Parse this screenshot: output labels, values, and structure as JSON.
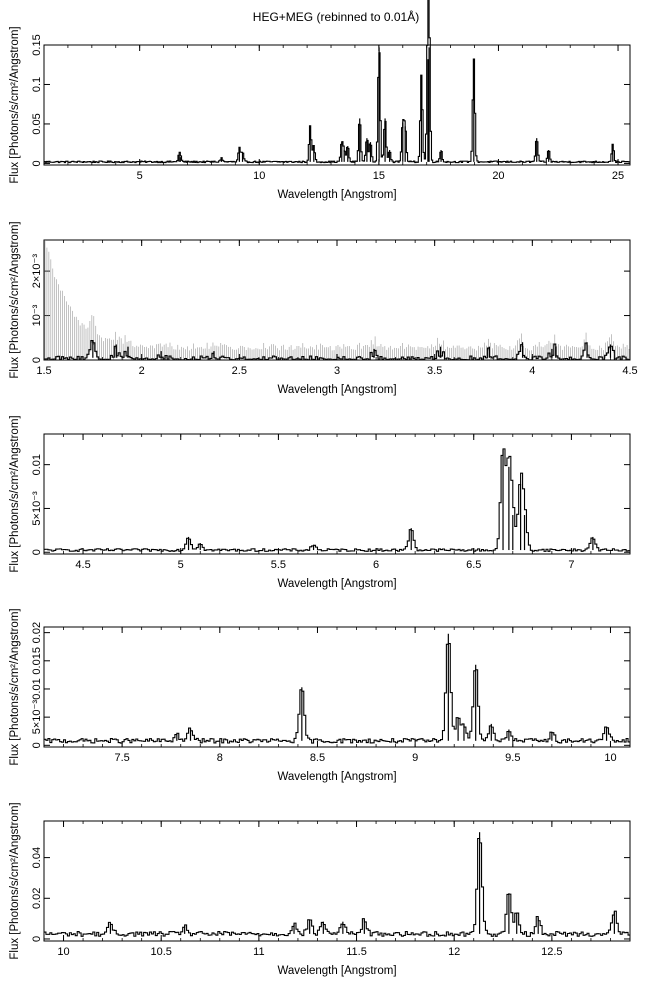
{
  "figure": {
    "title": "HEG+MEG (rebinned to 0.01Å)"
  },
  "colors": {
    "ink": "#000000",
    "errorbar": "#999999",
    "background": "#ffffff"
  },
  "chart_data": [
    {
      "type": "line",
      "step": true,
      "xlabel": "Wavelength [Angstrom]",
      "ylabel": "Flux [Photons/s/cm²/Angstrom]",
      "xlim": [
        1.0,
        25.5
      ],
      "ylim": [
        -0.002,
        0.15
      ],
      "xticks": [
        {
          "v": 5,
          "label": "5"
        },
        {
          "v": 10,
          "label": "10"
        },
        {
          "v": 15,
          "label": "15"
        },
        {
          "v": 20,
          "label": "20"
        },
        {
          "v": 25,
          "label": "25"
        }
      ],
      "yticks": [
        {
          "v": 0,
          "label": "0"
        },
        {
          "v": 0.05,
          "label": "0.05"
        },
        {
          "v": 0.1,
          "label": "0.1"
        },
        {
          "v": 0.15,
          "label": "0.15"
        }
      ],
      "continuum": 0.002,
      "noise": 0.001,
      "bin": 0.05,
      "lines": [
        [
          6.65,
          0.008
        ],
        [
          6.7,
          0.006
        ],
        [
          8.42,
          0.005
        ],
        [
          9.17,
          0.018
        ],
        [
          9.3,
          0.012
        ],
        [
          12.13,
          0.045
        ],
        [
          12.28,
          0.02
        ],
        [
          13.45,
          0.025
        ],
        [
          13.55,
          0.015
        ],
        [
          13.7,
          0.02
        ],
        [
          14.2,
          0.055
        ],
        [
          14.5,
          0.03
        ],
        [
          14.65,
          0.025
        ],
        [
          15.01,
          0.145
        ],
        [
          15.26,
          0.055
        ],
        [
          15.45,
          0.015
        ],
        [
          16.0,
          0.05
        ],
        [
          16.1,
          0.045
        ],
        [
          16.78,
          0.11
        ],
        [
          17.05,
          0.13
        ],
        [
          17.1,
          0.145
        ],
        [
          17.6,
          0.015
        ],
        [
          18.97,
          0.13
        ],
        [
          21.6,
          0.03
        ],
        [
          22.1,
          0.015
        ],
        [
          24.78,
          0.022
        ]
      ]
    },
    {
      "type": "line",
      "step": true,
      "xlabel": "Wavelength [Angstrom]",
      "ylabel": "Flux [Photons/s/cm²/Angstrom]",
      "xlim": [
        1.5,
        4.5
      ],
      "ylim": [
        0,
        0.0027
      ],
      "xticks": [
        {
          "v": 1.5,
          "label": "1.5"
        },
        {
          "v": 2,
          "label": "2"
        },
        {
          "v": 2.5,
          "label": "2.5"
        },
        {
          "v": 3,
          "label": "3"
        },
        {
          "v": 3.5,
          "label": "3.5"
        },
        {
          "v": 4,
          "label": "4"
        },
        {
          "v": 4.5,
          "label": "4.5"
        }
      ],
      "yticks": [
        {
          "v": 0,
          "label": "0"
        },
        {
          "v": 0.001,
          "label": "10⁻³"
        },
        {
          "v": 0.002,
          "label": "2×10⁻³"
        }
      ],
      "continuum": 5e-05,
      "noise": 4e-05,
      "bin": 0.01,
      "errbar_max": 0.0026,
      "errbar_decay": 0.12,
      "lines": [
        [
          1.75,
          0.0004
        ],
        [
          1.87,
          0.0003
        ],
        [
          1.93,
          0.00025
        ],
        [
          2.1,
          0.00015
        ],
        [
          2.37,
          0.00015
        ],
        [
          3.19,
          0.0002
        ],
        [
          3.53,
          0.00025
        ],
        [
          3.78,
          0.00025
        ],
        [
          3.95,
          0.00035
        ],
        [
          4.1,
          0.0002
        ],
        [
          4.12,
          0.00025
        ],
        [
          4.28,
          0.00035
        ],
        [
          4.4,
          0.0003
        ]
      ]
    },
    {
      "type": "line",
      "step": true,
      "xlabel": "Wavelength [Angstrom]",
      "ylabel": "Flux [Photons/s/cm²/Angstrom]",
      "xlim": [
        4.3,
        7.3
      ],
      "ylim": [
        -0.0002,
        0.0135
      ],
      "xticks": [
        {
          "v": 4.5,
          "label": "4.5"
        },
        {
          "v": 5,
          "label": "5"
        },
        {
          "v": 5.5,
          "label": "5.5"
        },
        {
          "v": 6,
          "label": "6"
        },
        {
          "v": 6.5,
          "label": "6.5"
        },
        {
          "v": 7,
          "label": "7"
        }
      ],
      "yticks": [
        {
          "v": 0,
          "label": "0"
        },
        {
          "v": 0.005,
          "label": "5×10⁻³"
        },
        {
          "v": 0.01,
          "label": "0.01"
        }
      ],
      "continuum": 0.00025,
      "noise": 0.00015,
      "bin": 0.01,
      "lines": [
        [
          5.04,
          0.0015
        ],
        [
          5.1,
          0.0008
        ],
        [
          5.68,
          0.0006
        ],
        [
          6.18,
          0.0025
        ],
        [
          6.65,
          0.0115
        ],
        [
          6.68,
          0.0095
        ],
        [
          6.7,
          0.004
        ],
        [
          6.74,
          0.0075
        ],
        [
          6.76,
          0.004
        ],
        [
          7.11,
          0.0015
        ]
      ]
    },
    {
      "type": "line",
      "step": true,
      "xlabel": "Wavelength [Angstrom]",
      "ylabel": "Flux [Photons/s/cm²/Angstrom]",
      "xlim": [
        7.1,
        10.1
      ],
      "ylim": [
        -0.0003,
        0.021
      ],
      "xticks": [
        {
          "v": 7.5,
          "label": "7.5"
        },
        {
          "v": 8,
          "label": "8"
        },
        {
          "v": 8.5,
          "label": "8.5"
        },
        {
          "v": 9,
          "label": "9"
        },
        {
          "v": 9.5,
          "label": "9.5"
        },
        {
          "v": 10,
          "label": "10"
        }
      ],
      "yticks": [
        {
          "v": 0,
          "label": "0"
        },
        {
          "v": 0.005,
          "label": "5×10⁻³"
        },
        {
          "v": 0.01,
          "label": "0.01"
        },
        {
          "v": 0.015,
          "label": "0.015"
        },
        {
          "v": 0.02,
          "label": "0.02"
        }
      ],
      "continuum": 0.0008,
      "noise": 0.0004,
      "bin": 0.01,
      "lines": [
        [
          7.78,
          0.0012
        ],
        [
          7.85,
          0.0022
        ],
        [
          8.42,
          0.0095
        ],
        [
          9.17,
          0.019
        ],
        [
          9.22,
          0.004
        ],
        [
          9.25,
          0.003
        ],
        [
          9.31,
          0.0135
        ],
        [
          9.39,
          0.003
        ],
        [
          9.48,
          0.002
        ],
        [
          9.7,
          0.0015
        ],
        [
          9.98,
          0.0025
        ]
      ]
    },
    {
      "type": "line",
      "step": true,
      "xlabel": "Wavelength [Angstrom]",
      "ylabel": "Flux [Photons/s/cm²/Angstrom]",
      "xlim": [
        9.9,
        12.9
      ],
      "ylim": [
        -0.001,
        0.058
      ],
      "xticks": [
        {
          "v": 10,
          "label": "10"
        },
        {
          "v": 10.5,
          "label": "10.5"
        },
        {
          "v": 11,
          "label": "11"
        },
        {
          "v": 11.5,
          "label": "11.5"
        },
        {
          "v": 12,
          "label": "12"
        },
        {
          "v": 12.5,
          "label": "12.5"
        }
      ],
      "yticks": [
        {
          "v": 0,
          "label": "0"
        },
        {
          "v": 0.02,
          "label": "0.02"
        },
        {
          "v": 0.04,
          "label": "0.04"
        }
      ],
      "continuum": 0.0025,
      "noise": 0.0012,
      "bin": 0.01,
      "lines": [
        [
          10.24,
          0.005
        ],
        [
          10.62,
          0.004
        ],
        [
          11.18,
          0.005
        ],
        [
          11.26,
          0.007
        ],
        [
          11.33,
          0.006
        ],
        [
          11.43,
          0.006
        ],
        [
          11.54,
          0.007
        ],
        [
          12.13,
          0.05
        ],
        [
          12.28,
          0.02
        ],
        [
          12.32,
          0.01
        ],
        [
          12.43,
          0.008
        ],
        [
          12.82,
          0.011
        ]
      ]
    }
  ]
}
